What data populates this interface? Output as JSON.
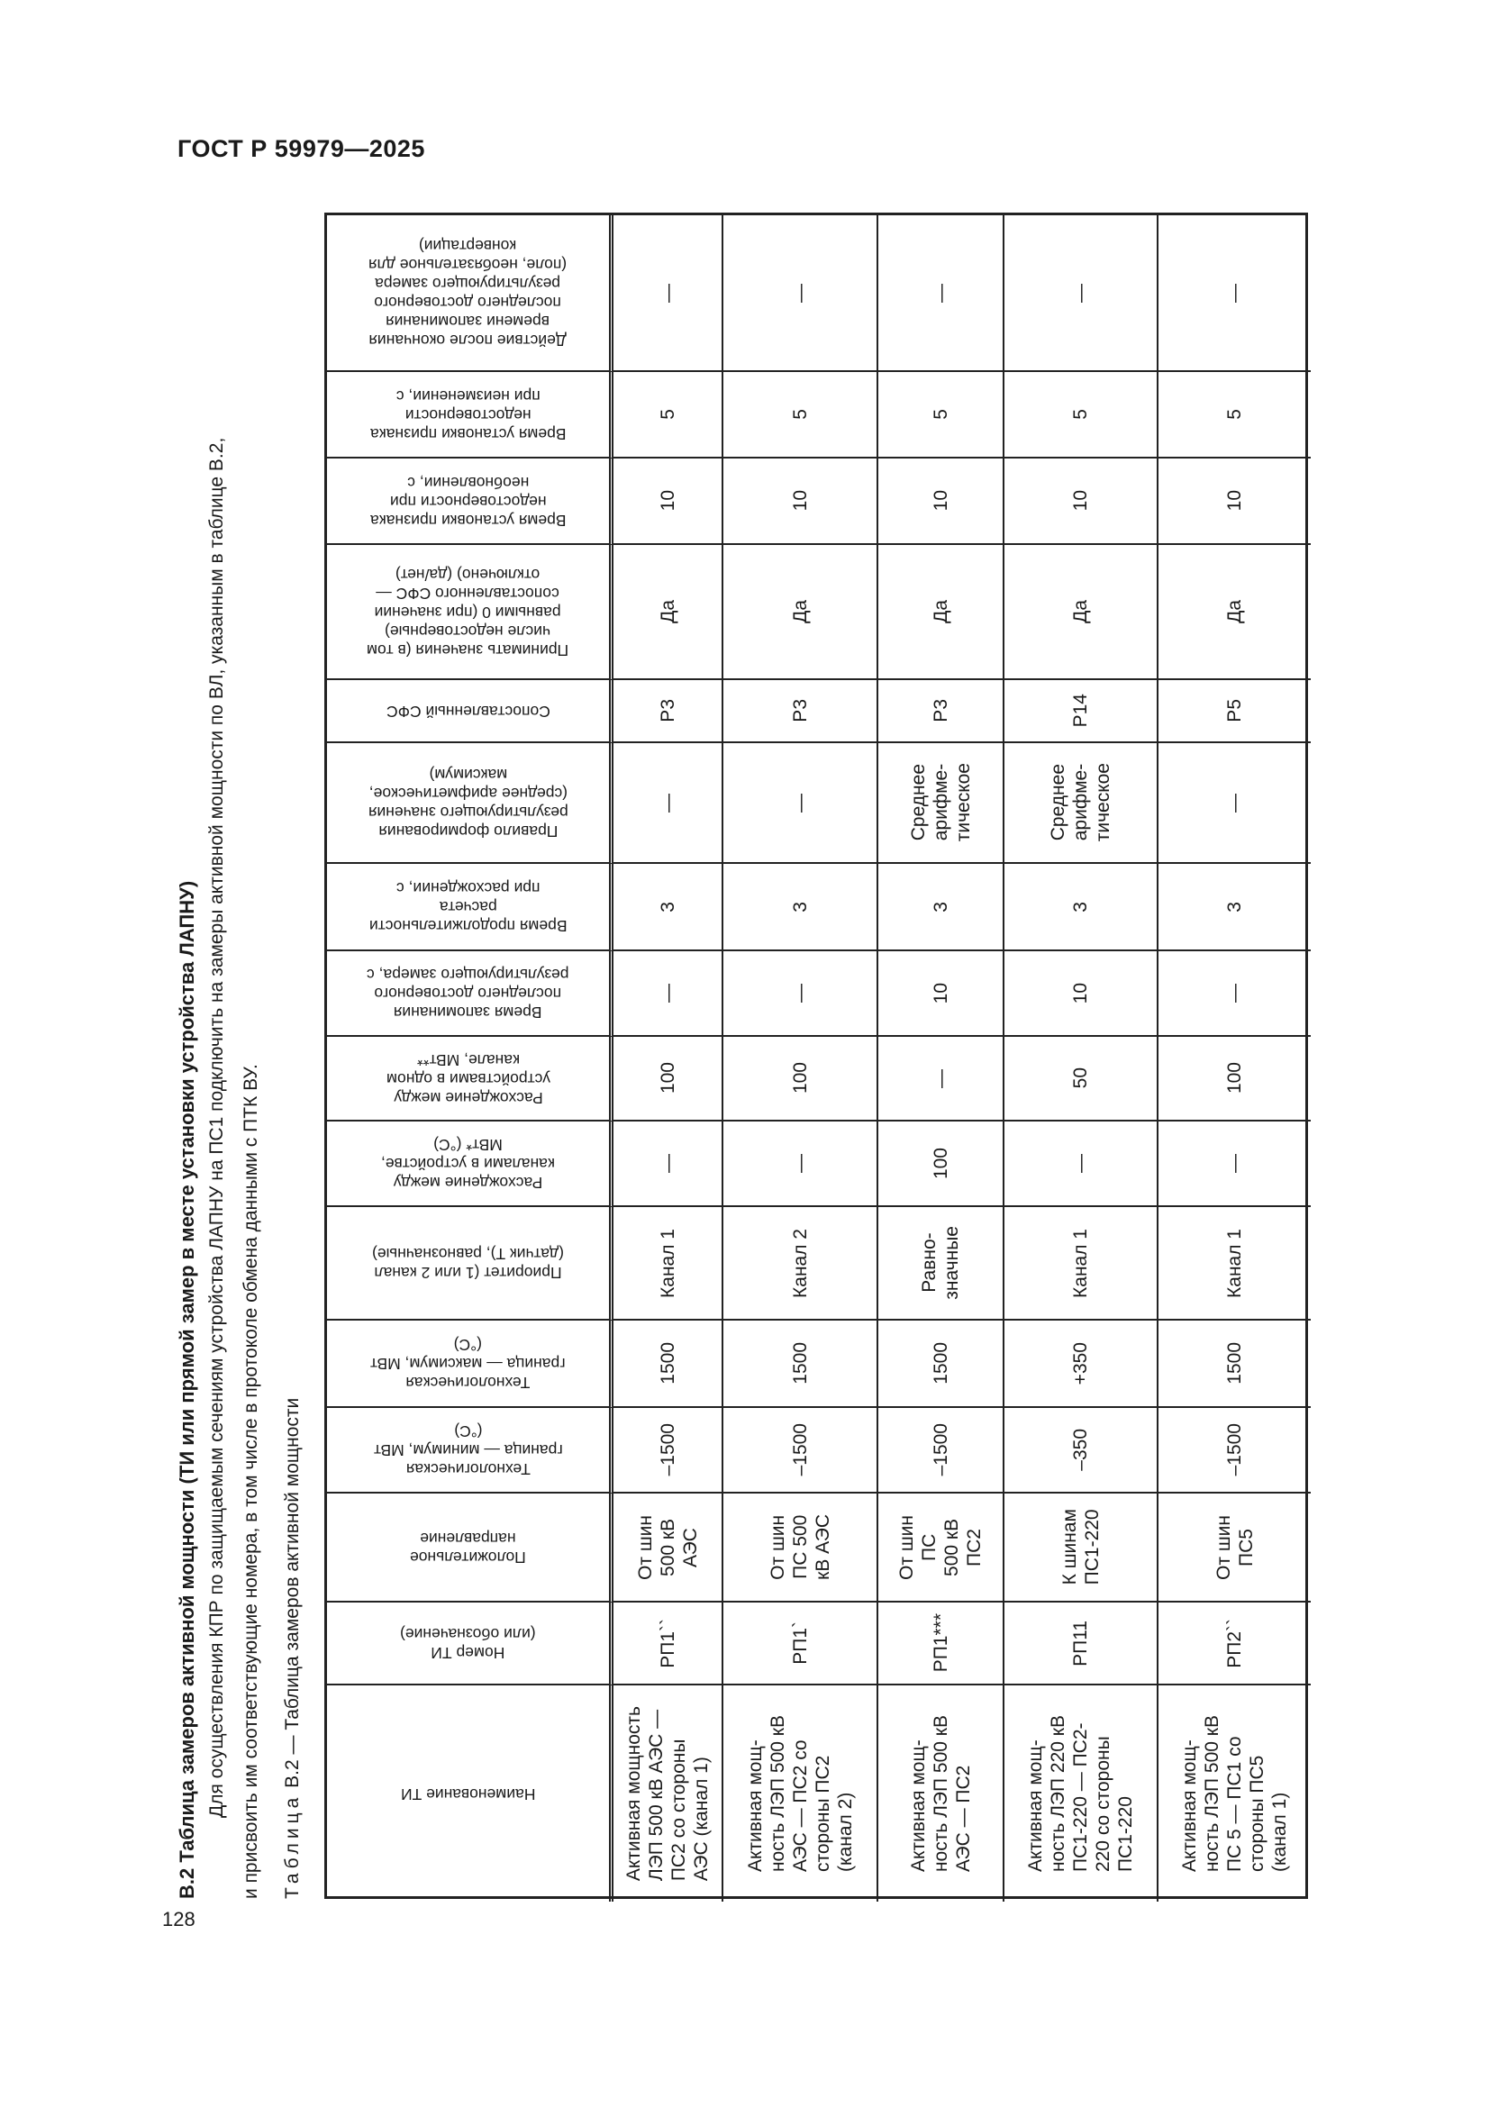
{
  "header": {
    "doc_title": "ГОСТ Р 59979—2025",
    "page_number": "128"
  },
  "section": {
    "heading": "В.2 Таблица замеров активной мощности (ТИ или прямой замер в месте установки устройства ЛАПНУ)",
    "para_line1": "Для осуществления КПР по защищаемым сечениям устройства ЛАПНУ на ПС1 подключить на замеры активной мощности по ВЛ, указанным в таблице В.2,",
    "para_line2": "и присвоить им соответствующие номера, в том числе в протоколе обмена данными с ПТК ВУ.",
    "caption_label": "Таблица",
    "caption_text": " В.2 — Таблица замеров активной мощности"
  },
  "table": {
    "columns": [
      "Наименование ТИ",
      "Номер ТИ\n(или обозначение)",
      "Положительное\nнаправление",
      "Технологическая\nграница — минимум, МВт\n(°С)",
      "Технологическая\nграница — максимум, МВт\n(°С)",
      "Приоритет (1 или 2 канал\n(датчик Т), равнозначные)",
      "Расхождение между\nканалами в устройстве,\nМВт* (°С)",
      "Расхождение между\nустройствами в одном\nканале, МВт**",
      "Время запоминания\nпоследнего достоверного\nрезультирующего замера, с",
      "Время продолжительности\nрасчета\nпри расхождении, с",
      "Правило формирования\nрезультирующего значения\n(среднее арифметическое,\nмаксимум)",
      "Сопоставленный СФС",
      "Принимать значения (в том\nчисле недостоверные)\nравными 0 (при значении\nсопоставленного СФС —\nотключено) (да/нет)",
      "Время установки признака\nнедостоверности при\nнеобновлении, с",
      "Время установки признака\nнедостоверности\nпри неизменении, с",
      "Действие после окончания\nвремени запоминания\nпоследнего достоверного\nрезультирующего замера\n(поле, необязательное для\nконвертации)"
    ],
    "rows": [
      [
        "Активная мощность\nЛЭП 500 кВ АЭС —\nПС2 со стороны\nАЭС (канал 1)",
        "РП1``",
        "От шин\n500 кВ\nАЭС",
        "–1500",
        "1500",
        "Канал 1",
        "—",
        "100",
        "—",
        "3",
        "—",
        "Р3",
        "Да",
        "10",
        "5",
        "—"
      ],
      [
        "Активная мощ-\nность ЛЭП 500 кВ\nАЭС — ПС2 со\nстороны ПС2\n(канал 2)",
        "РП1`",
        "От шин\nПС 500\nкВ АЭС",
        "–1500",
        "1500",
        "Канал 2",
        "—",
        "100",
        "—",
        "3",
        "—",
        "Р3",
        "Да",
        "10",
        "5",
        "—"
      ],
      [
        "Активная мощ-\nность ЛЭП 500 кВ\nАЭС — ПС2",
        "РП1***",
        "От шин\nПС\n500 кВ\nПС2",
        "–1500",
        "1500",
        "Равно-\nзначные",
        "100",
        "—",
        "10",
        "3",
        "Среднее\nарифме-\nтическое",
        "Р3",
        "Да",
        "10",
        "5",
        "—"
      ],
      [
        "Активная мощ-\nность ЛЭП 220 кВ\nПС1-220 — ПС2-\n220 со стороны\nПС1-220",
        "РП11",
        "К шинам\nПС1-220",
        "–350",
        "+350",
        "Канал 1",
        "—",
        "50",
        "10",
        "3",
        "Среднее\nарифме-\nтическое",
        "Р14",
        "Да",
        "10",
        "5",
        "—"
      ],
      [
        "Активная мощ-\nность ЛЭП 500 кВ\nПС 5 — ПС1 со\nстороны ПС5\n(канал 1)",
        "РП2``",
        "От шин\nПС5",
        "–1500",
        "1500",
        "Канал 1",
        "—",
        "100",
        "—",
        "3",
        "—",
        "Р5",
        "Да",
        "10",
        "5",
        "—"
      ]
    ]
  }
}
